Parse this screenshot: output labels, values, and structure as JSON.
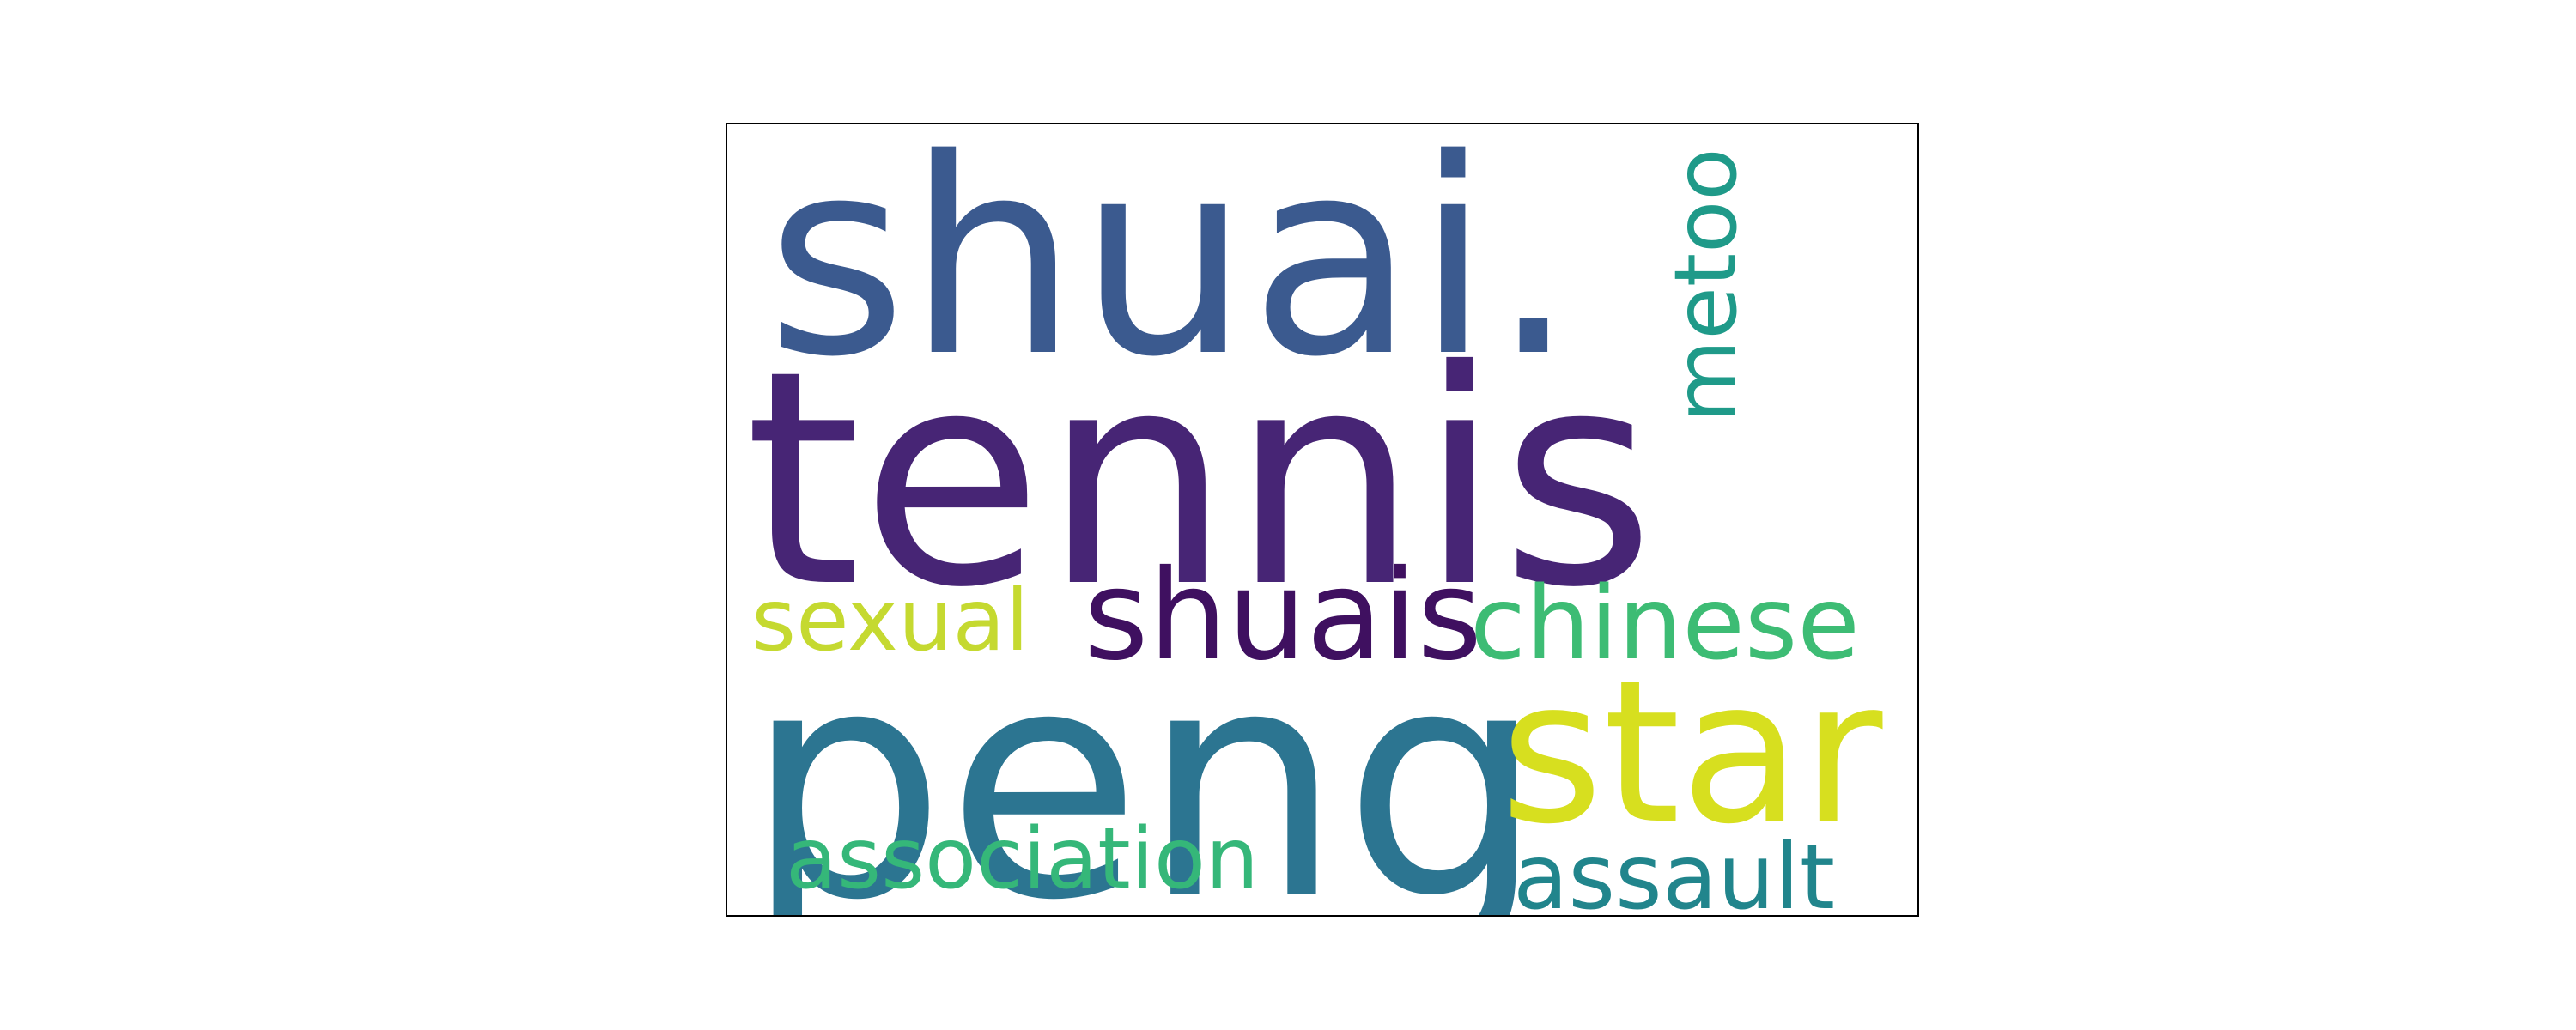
{
  "wordcloud": {
    "words": [
      {
        "text": "shuai.",
        "color": "#3b5a8f"
      },
      {
        "text": "tennis",
        "color": "#472575"
      },
      {
        "text": "metoo",
        "color": "#1f9a89"
      },
      {
        "text": "sexual",
        "color": "#c5d930"
      },
      {
        "text": "shuais",
        "color": "#3f1060"
      },
      {
        "text": "chinese",
        "color": "#3dbc74"
      },
      {
        "text": "peng",
        "color": "#2c7591"
      },
      {
        "text": "star",
        "color": "#d7df1f"
      },
      {
        "text": "association",
        "color": "#35b779"
      },
      {
        "text": "assault",
        "color": "#21858c"
      }
    ]
  }
}
